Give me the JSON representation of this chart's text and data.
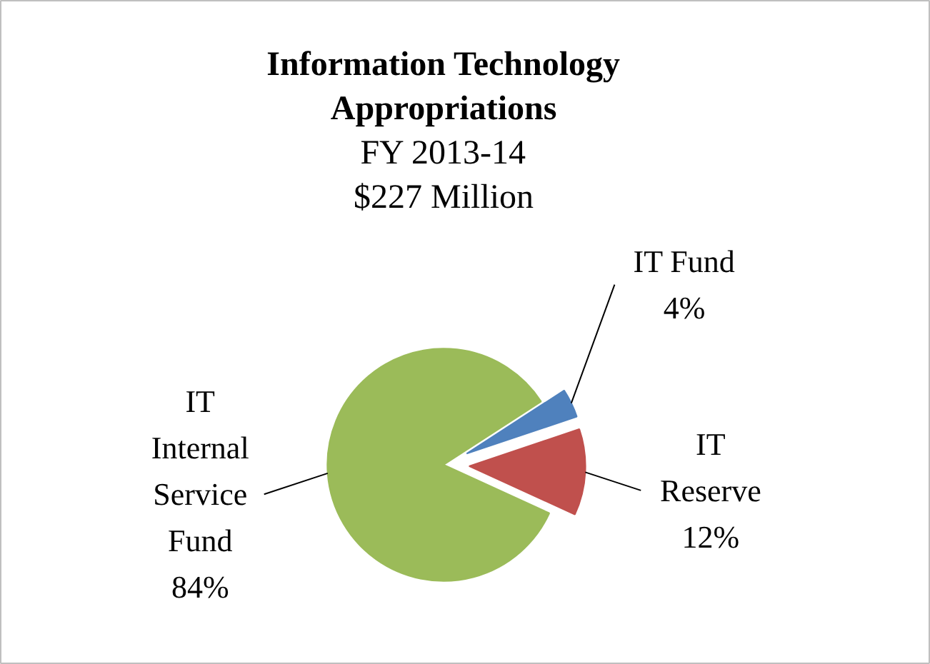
{
  "chart_data": {
    "type": "pie",
    "title": "Information Technology Appropriations",
    "subtitle": "FY 2013-14\n$227 Million",
    "categories": [
      "IT Fund",
      "IT Reserve",
      "IT Internal Service Fund"
    ],
    "values": [
      4,
      12,
      84
    ],
    "colors": [
      "#4f81bd",
      "#c0504d",
      "#9bbb59"
    ],
    "value_labels": [
      "4%",
      "12%",
      "84%"
    ]
  }
}
